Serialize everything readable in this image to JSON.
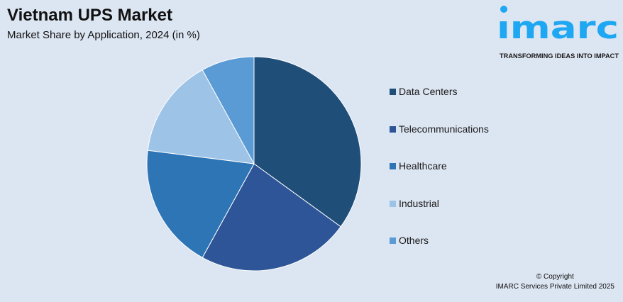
{
  "header": {
    "title": "Vietnam UPS Market",
    "subtitle": "Market Share by Application, 2024 (in %)"
  },
  "logo": {
    "text": "imarc",
    "tagline": "TRANSFORMING IDEAS INTO IMPACT",
    "color": "#1ea7f2"
  },
  "footer": {
    "copyright": "© Copyright",
    "company": "IMARC Services Private Limited 2025"
  },
  "chart_data": {
    "type": "pie",
    "title": "Vietnam UPS Market",
    "subtitle": "Market Share by Application, 2024 (in %)",
    "categories": [
      "Data Centers",
      "Telecommunications",
      "Healthcare",
      "Industrial",
      "Others"
    ],
    "values": [
      35,
      23,
      19,
      15,
      8
    ],
    "colors": [
      "#1f4e79",
      "#2e5597",
      "#2e75b6",
      "#9dc3e6",
      "#5b9bd5"
    ],
    "start_angle": "top, clockwise",
    "legend_placement": "right"
  }
}
